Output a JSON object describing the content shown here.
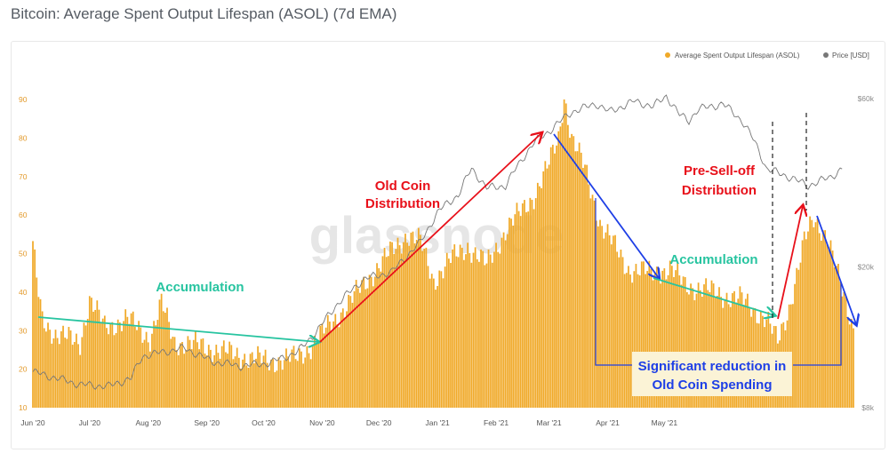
{
  "page_title": "Bitcoin: Average Spent Output Lifespan (ASOL) (7d EMA)",
  "watermark": "glassnode",
  "colors": {
    "bar": "#f0a928",
    "price_line": "#777777",
    "red_annotation": "#e8101a",
    "green_annotation": "#27c4a0",
    "blue_annotation": "#1e3fe6",
    "axis_text": "#e39a2b",
    "axis_text_right": "#8a8a8a"
  },
  "legend": {
    "asol_label": "Average Spent Output Lifespan (ASOL)",
    "price_label": "Price [USD]"
  },
  "annotations": {
    "accumulation_1": "Accumulation",
    "old_coin_1": "Old Coin",
    "old_coin_2": "Distribution",
    "accumulation_2": "Accumulation",
    "pre_sell_1": "Pre-Sell-off",
    "pre_sell_2": "Distribution",
    "reduction_1": "Significant reduction in",
    "reduction_2": "Old Coin Spending"
  },
  "chart_data": {
    "type": "bar",
    "title": "Bitcoin: Average Spent Output Lifespan (ASOL) (7d EMA)",
    "x_ticks": [
      "Jun '20",
      "Jul '20",
      "Aug '20",
      "Sep '20",
      "Oct '20",
      "Nov '20",
      "Dec '20",
      "Jan '21",
      "Feb '21",
      "Mar '21",
      "Apr '21",
      "May '21"
    ],
    "y_ticks_left": [
      "10",
      "20",
      "30",
      "40",
      "50",
      "60",
      "70",
      "80",
      "90"
    ],
    "y_ticks_right": [
      "$8k",
      "$20k",
      "$60k"
    ],
    "ylim_left": [
      10,
      93
    ],
    "price_scale": "log",
    "price_lim": [
      8000,
      60000
    ],
    "legend_position": "top-right",
    "series": [
      {
        "name": "Average Spent Output Lifespan (ASOL)",
        "kind": "bar",
        "control_points": [
          [
            0,
            52
          ],
          [
            2,
            43
          ],
          [
            5,
            33
          ],
          [
            12,
            29
          ],
          [
            25,
            27
          ],
          [
            30,
            38
          ],
          [
            38,
            31
          ],
          [
            50,
            33
          ],
          [
            62,
            28
          ],
          [
            68,
            37
          ],
          [
            75,
            27
          ],
          [
            90,
            26
          ],
          [
            105,
            24
          ],
          [
            125,
            22
          ],
          [
            140,
            23
          ],
          [
            147,
            26
          ],
          [
            160,
            33
          ],
          [
            175,
            42
          ],
          [
            185,
            48
          ],
          [
            198,
            55
          ],
          [
            205,
            53
          ],
          [
            212,
            43
          ],
          [
            220,
            48
          ],
          [
            230,
            52
          ],
          [
            240,
            47
          ],
          [
            250,
            56
          ],
          [
            265,
            65
          ],
          [
            272,
            72
          ],
          [
            278,
            80
          ],
          [
            281,
            91
          ],
          [
            285,
            80
          ],
          [
            292,
            72
          ],
          [
            300,
            58
          ],
          [
            315,
            46
          ],
          [
            326,
            45
          ],
          [
            337,
            46
          ],
          [
            345,
            42
          ],
          [
            360,
            40
          ],
          [
            375,
            38
          ],
          [
            388,
            33
          ],
          [
            394,
            27
          ],
          [
            400,
            36
          ],
          [
            408,
            53
          ],
          [
            413,
            59
          ],
          [
            420,
            55
          ],
          [
            428,
            40
          ],
          [
            434,
            31
          ]
        ],
        "start": "2020-06-01",
        "days": 435
      },
      {
        "name": "Price [USD]",
        "kind": "line",
        "control_points": [
          [
            0,
            10100
          ],
          [
            25,
            9300
          ],
          [
            40,
            9200
          ],
          [
            52,
            9700
          ],
          [
            58,
            11200
          ],
          [
            80,
            11800
          ],
          [
            95,
            10800
          ],
          [
            110,
            10500
          ],
          [
            125,
            10700
          ],
          [
            140,
            11500
          ],
          [
            150,
            13100
          ],
          [
            160,
            15500
          ],
          [
            175,
            18500
          ],
          [
            190,
            19400
          ],
          [
            205,
            23500
          ],
          [
            215,
            29000
          ],
          [
            225,
            32000
          ],
          [
            232,
            38000
          ],
          [
            240,
            33500
          ],
          [
            250,
            34000
          ],
          [
            265,
            45000
          ],
          [
            272,
            48000
          ],
          [
            285,
            55000
          ],
          [
            298,
            58000
          ],
          [
            305,
            55000
          ],
          [
            318,
            59000
          ],
          [
            328,
            57000
          ],
          [
            335,
            61000
          ],
          [
            342,
            54000
          ],
          [
            347,
            52000
          ],
          [
            352,
            56000
          ],
          [
            365,
            58000
          ],
          [
            375,
            52000
          ],
          [
            382,
            45000
          ],
          [
            388,
            38000
          ],
          [
            400,
            36000
          ],
          [
            410,
            34000
          ],
          [
            422,
            36000
          ],
          [
            428,
            38000
          ]
        ],
        "start": "2020-06-01"
      }
    ]
  }
}
